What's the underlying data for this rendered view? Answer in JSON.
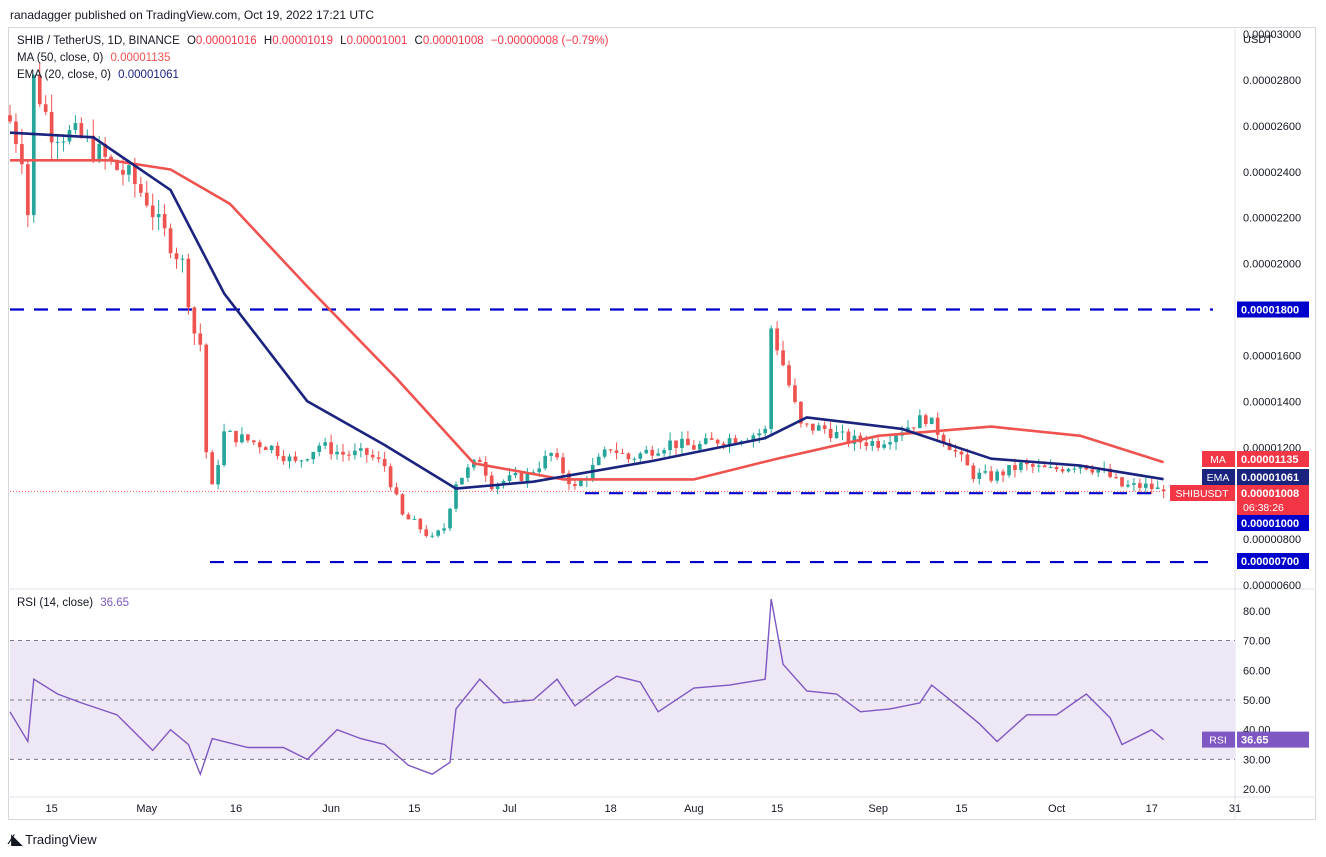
{
  "header": {
    "publisher": "ranadagger published on TradingView.com, Oct 19, 2022 17:21 UTC"
  },
  "legend": {
    "symbol": "SHIB / TetherUS, 1D, BINANCE",
    "o_label": "O",
    "o": "0.00001016",
    "h_label": "H",
    "h": "0.00001019",
    "l_label": "L",
    "l": "0.00001001",
    "c_label": "C",
    "c": "0.00001008",
    "change": "−0.00000008 (−0.79%)",
    "ma_label": "MA (50, close, 0)",
    "ma_value": "0.00001135",
    "ema_label": "EMA (20, close, 0)",
    "ema_value": "0.00001061",
    "rsi_label": "RSI (14, close)",
    "rsi_value": "36.65"
  },
  "axis": {
    "currency": "USDT"
  },
  "price_ticks": [
    "0.00003000",
    "0.00002800",
    "0.00002600",
    "0.00002400",
    "0.00002200",
    "0.00002000",
    "0.00001800",
    "0.00001600",
    "0.00001400",
    "0.00001200",
    "0.00001000",
    "0.00000800",
    "0.00000600"
  ],
  "badges": {
    "ma": {
      "tag": "MA",
      "value": "0.00001135"
    },
    "ema": {
      "tag": "EMA",
      "value": "0.00001061"
    },
    "last": {
      "tag": "SHIBUSDT",
      "value": "0.00001008",
      "countdown": "06:38:26"
    },
    "lvl_1800": "0.00001800",
    "lvl_1000": "0.00001000",
    "lvl_700": "0.00000700",
    "rsi": {
      "tag": "RSI",
      "value": "36.65"
    }
  },
  "rsi_ticks": [
    "80.00",
    "70.00",
    "60.00",
    "50.00",
    "40.00",
    "30.00",
    "20.00"
  ],
  "x_ticks": [
    "15",
    "May",
    "16",
    "Jun",
    "15",
    "Jul",
    "18",
    "Aug",
    "15",
    "Sep",
    "15",
    "Oct",
    "17",
    "31"
  ],
  "footer": {
    "brand": "TradingView"
  },
  "colors": {
    "up": "#26a69a",
    "down": "#ef5350",
    "ma": "#ef5350",
    "ema": "#1a237e",
    "rsi": "#7e57c2",
    "level": "#0000cc",
    "rsi_band": "#ede7f6"
  },
  "chart_data": {
    "type": "candlestick",
    "title": "SHIB / TetherUS, 1D, BINANCE",
    "ylabel": "USDT",
    "ylim": [
      6e-06,
      3e-05
    ],
    "scale": "linear",
    "horizontal_levels": [
      1.8e-05,
      1e-05,
      7e-06
    ],
    "x_range": [
      "2022-04-08",
      "2022-10-31"
    ],
    "close_series": [
      [
        "2022-04-08",
        2.62e-05
      ],
      [
        "2022-04-10",
        2.48e-05
      ],
      [
        "2022-04-11",
        2.22e-05
      ],
      [
        "2022-04-12",
        2.8e-05
      ],
      [
        "2022-04-15",
        2.58e-05
      ],
      [
        "2022-04-20",
        2.55e-05
      ],
      [
        "2022-04-25",
        2.43e-05
      ],
      [
        "2022-04-28",
        2.38e-05
      ],
      [
        "2022-05-01",
        2.28e-05
      ],
      [
        "2022-05-03",
        2.17e-05
      ],
      [
        "2022-05-05",
        2.09e-05
      ],
      [
        "2022-05-07",
        2e-05
      ],
      [
        "2022-05-09",
        1.7e-05
      ],
      [
        "2022-05-10",
        1.65e-05
      ],
      [
        "2022-05-11",
        1.18e-05
      ],
      [
        "2022-05-12",
        1.02e-05
      ],
      [
        "2022-05-14",
        1.26e-05
      ],
      [
        "2022-05-18",
        1.23e-05
      ],
      [
        "2022-05-22",
        1.2e-05
      ],
      [
        "2022-05-26",
        1.13e-05
      ],
      [
        "2022-05-30",
        1.21e-05
      ],
      [
        "2022-06-03",
        1.17e-05
      ],
      [
        "2022-06-07",
        1.17e-05
      ],
      [
        "2022-06-10",
        1.12e-05
      ],
      [
        "2022-06-13",
        9e-06
      ],
      [
        "2022-06-15",
        8.7e-06
      ],
      [
        "2022-06-18",
        8e-06
      ],
      [
        "2022-06-20",
        8.5e-06
      ],
      [
        "2022-06-22",
        1.05e-05
      ],
      [
        "2022-06-26",
        1.15e-05
      ],
      [
        "2022-06-28",
        1.04e-05
      ],
      [
        "2022-07-01",
        1.06e-05
      ],
      [
        "2022-07-04",
        1.08e-05
      ],
      [
        "2022-07-08",
        1.17e-05
      ],
      [
        "2022-07-12",
        1.02e-05
      ],
      [
        "2022-07-15",
        1.11e-05
      ],
      [
        "2022-07-18",
        1.2e-05
      ],
      [
        "2022-07-21",
        1.15e-05
      ],
      [
        "2022-07-24",
        1.18e-05
      ],
      [
        "2022-07-28",
        1.22e-05
      ],
      [
        "2022-08-01",
        1.2e-05
      ],
      [
        "2022-08-05",
        1.23e-05
      ],
      [
        "2022-08-10",
        1.25e-05
      ],
      [
        "2022-08-13",
        1.27e-05
      ],
      [
        "2022-08-14",
        1.72e-05
      ],
      [
        "2022-08-16",
        1.56e-05
      ],
      [
        "2022-08-19",
        1.29e-05
      ],
      [
        "2022-08-23",
        1.28e-05
      ],
      [
        "2022-08-27",
        1.23e-05
      ],
      [
        "2022-09-01",
        1.22e-05
      ],
      [
        "2022-09-05",
        1.28e-05
      ],
      [
        "2022-09-09",
        1.33e-05
      ],
      [
        "2022-09-13",
        1.21e-05
      ],
      [
        "2022-09-17",
        1.08e-05
      ],
      [
        "2022-09-20",
        1.07e-05
      ],
      [
        "2022-09-25",
        1.12e-05
      ],
      [
        "2022-09-30",
        1.1e-05
      ],
      [
        "2022-10-05",
        1.13e-05
      ],
      [
        "2022-10-09",
        1.09e-05
      ],
      [
        "2022-10-12",
        1.03e-05
      ],
      [
        "2022-10-16",
        1.03e-05
      ],
      [
        "2022-10-19",
        1.008e-05
      ]
    ],
    "ma50": [
      [
        "2022-04-08",
        2.45e-05
      ],
      [
        "2022-04-25",
        2.45e-05
      ],
      [
        "2022-05-05",
        2.41e-05
      ],
      [
        "2022-05-15",
        2.26e-05
      ],
      [
        "2022-05-28",
        1.9e-05
      ],
      [
        "2022-06-12",
        1.5e-05
      ],
      [
        "2022-06-25",
        1.13e-05
      ],
      [
        "2022-07-10",
        1.06e-05
      ],
      [
        "2022-08-01",
        1.06e-05
      ],
      [
        "2022-08-15",
        1.15e-05
      ],
      [
        "2022-09-01",
        1.25e-05
      ],
      [
        "2022-09-20",
        1.29e-05
      ],
      [
        "2022-10-05",
        1.25e-05
      ],
      [
        "2022-10-19",
        1.135e-05
      ]
    ],
    "ema20": [
      [
        "2022-04-08",
        2.57e-05
      ],
      [
        "2022-04-22",
        2.55e-05
      ],
      [
        "2022-05-05",
        2.32e-05
      ],
      [
        "2022-05-14",
        1.87e-05
      ],
      [
        "2022-05-28",
        1.4e-05
      ],
      [
        "2022-06-10",
        1.21e-05
      ],
      [
        "2022-06-22",
        1.02e-05
      ],
      [
        "2022-07-05",
        1.05e-05
      ],
      [
        "2022-07-25",
        1.14e-05
      ],
      [
        "2022-08-13",
        1.24e-05
      ],
      [
        "2022-08-20",
        1.33e-05
      ],
      [
        "2022-09-05",
        1.28e-05
      ],
      [
        "2022-09-20",
        1.15e-05
      ],
      [
        "2022-10-05",
        1.12e-05
      ],
      [
        "2022-10-19",
        1.061e-05
      ]
    ],
    "rsi14": {
      "ylim": [
        20,
        85
      ],
      "overbought": 70,
      "oversold": 30,
      "midline": 50,
      "last": 36.65,
      "values": [
        [
          "2022-04-08",
          46
        ],
        [
          "2022-04-11",
          36
        ],
        [
          "2022-04-12",
          57
        ],
        [
          "2022-04-16",
          52
        ],
        [
          "2022-04-20",
          49
        ],
        [
          "2022-04-26",
          45
        ],
        [
          "2022-05-02",
          33
        ],
        [
          "2022-05-05",
          40
        ],
        [
          "2022-05-08",
          35
        ],
        [
          "2022-05-10",
          25
        ],
        [
          "2022-05-12",
          37
        ],
        [
          "2022-05-18",
          34
        ],
        [
          "2022-05-24",
          34
        ],
        [
          "2022-05-28",
          30
        ],
        [
          "2022-06-02",
          40
        ],
        [
          "2022-06-06",
          37
        ],
        [
          "2022-06-10",
          35
        ],
        [
          "2022-06-14",
          28
        ],
        [
          "2022-06-18",
          25
        ],
        [
          "2022-06-21",
          29
        ],
        [
          "2022-06-22",
          47
        ],
        [
          "2022-06-26",
          57
        ],
        [
          "2022-06-30",
          49
        ],
        [
          "2022-07-05",
          50
        ],
        [
          "2022-07-09",
          57
        ],
        [
          "2022-07-12",
          48
        ],
        [
          "2022-07-16",
          54
        ],
        [
          "2022-07-19",
          58
        ],
        [
          "2022-07-23",
          56
        ],
        [
          "2022-07-26",
          46
        ],
        [
          "2022-08-01",
          54
        ],
        [
          "2022-08-07",
          55
        ],
        [
          "2022-08-13",
          57
        ],
        [
          "2022-08-14",
          84
        ],
        [
          "2022-08-16",
          62
        ],
        [
          "2022-08-20",
          53
        ],
        [
          "2022-08-25",
          52
        ],
        [
          "2022-08-29",
          46
        ],
        [
          "2022-09-03",
          47
        ],
        [
          "2022-09-08",
          49
        ],
        [
          "2022-09-10",
          55
        ],
        [
          "2022-09-15",
          47
        ],
        [
          "2022-09-18",
          42
        ],
        [
          "2022-09-21",
          36
        ],
        [
          "2022-09-26",
          45
        ],
        [
          "2022-10-01",
          45
        ],
        [
          "2022-10-06",
          52
        ],
        [
          "2022-10-10",
          44
        ],
        [
          "2022-10-12",
          35
        ],
        [
          "2022-10-15",
          38
        ],
        [
          "2022-10-17",
          40
        ],
        [
          "2022-10-19",
          36.65
        ]
      ]
    }
  }
}
